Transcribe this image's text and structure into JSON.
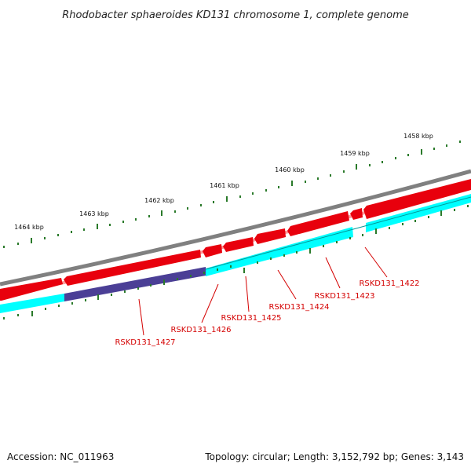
{
  "title": "Rhodobacter sphaeroides KD131 chromosome 1, complete genome",
  "footer": {
    "accession": "Accession: NC_011963",
    "summary": "Topology: circular; Length: 3,152,792 bp; Genes: 3,143"
  },
  "ticks": [
    {
      "label": "1458 kbp"
    },
    {
      "label": "1459 kbp"
    },
    {
      "label": "1460 kbp"
    },
    {
      "label": "1461 kbp"
    },
    {
      "label": "1462 kbp"
    },
    {
      "label": "1463 kbp"
    },
    {
      "label": "1464 kbp"
    }
  ],
  "genes": [
    {
      "label": "RSKD131_1422"
    },
    {
      "label": "RSKD131_1423"
    },
    {
      "label": "RSKD131_1424"
    },
    {
      "label": "RSKD131_1425"
    },
    {
      "label": "RSKD131_1426"
    },
    {
      "label": "RSKD131_1427"
    }
  ],
  "colors": {
    "backbone": "#808080",
    "cds": "#e8000d",
    "cds_highlight": "#ff9999",
    "gene": "#00ffff",
    "gene_selected": "#4b3f96",
    "ticks": "#2a7a2a",
    "labels": "#d40000"
  }
}
